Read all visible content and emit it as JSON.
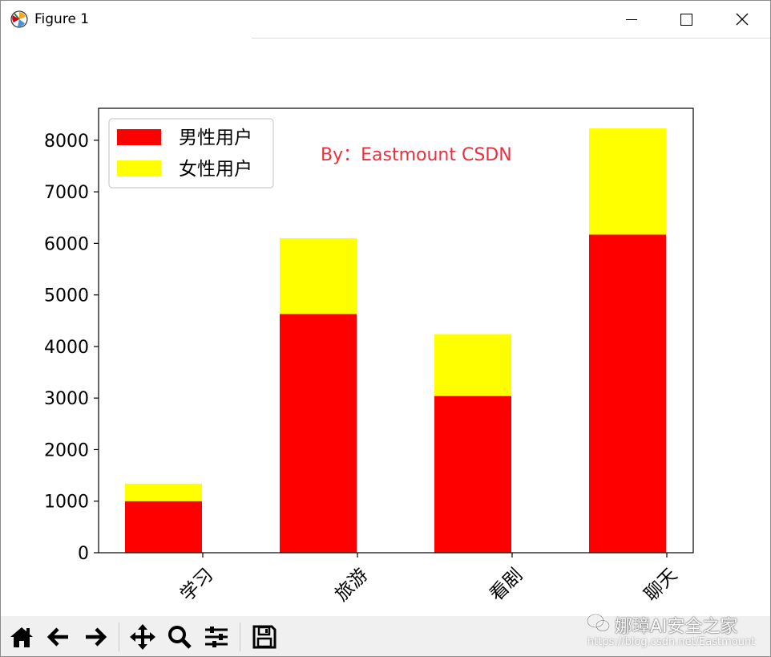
{
  "window": {
    "title": "Figure 1"
  },
  "chart_data": {
    "type": "bar",
    "stacked": true,
    "categories": [
      "学习",
      "旅游",
      "看剧",
      "聊天"
    ],
    "series": [
      {
        "name": "男性用户",
        "color": "#ff0000",
        "values": [
          1000,
          4630,
          3040,
          6170
        ]
      },
      {
        "name": "女性用户",
        "color": "#ffff00",
        "values": [
          340,
          1470,
          1200,
          2060
        ]
      }
    ],
    "yticks": [
      "0",
      "1000",
      "2000",
      "3000",
      "4000",
      "5000",
      "6000",
      "7000",
      "8000"
    ],
    "ylim": [
      0,
      8620
    ],
    "grid": false,
    "legend": "top-left",
    "xtick_rotation": 45,
    "annotation": {
      "text": "By：Eastmount CSDN",
      "color": "#e8313e"
    }
  },
  "toolbar": {
    "buttons": [
      "home-icon",
      "back-icon",
      "forward-icon",
      "pan-icon",
      "zoom-icon",
      "configure-subplots-icon",
      "save-icon"
    ]
  },
  "watermark": {
    "main": "娜璋AI安全之家",
    "url": "https://blog.csdn.net/Eastmount"
  }
}
